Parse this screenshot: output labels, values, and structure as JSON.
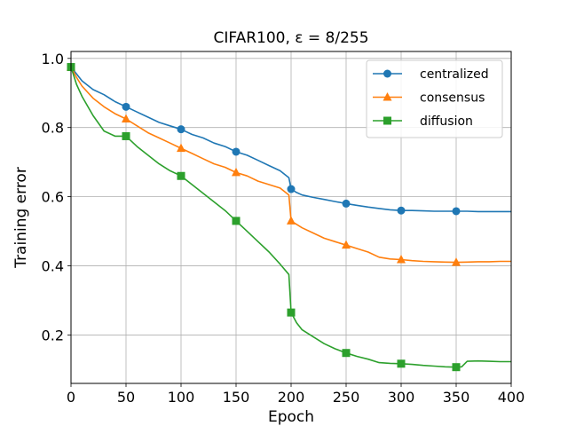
{
  "chart_data": {
    "type": "line",
    "title": "CIFAR100, ε = 8/255",
    "xlabel": "Epoch",
    "ylabel": "Training error",
    "xlim": [
      0,
      400
    ],
    "ylim": [
      0.06,
      1.02
    ],
    "xticks": [
      0,
      50,
      100,
      150,
      200,
      250,
      300,
      350,
      400
    ],
    "xtick_labels": [
      "0",
      "50",
      "100",
      "150",
      "200",
      "250",
      "300",
      "350",
      "400"
    ],
    "yticks": [
      0.2,
      0.4,
      0.6,
      0.8,
      1.0
    ],
    "ytick_labels": [
      "0.2",
      "0.4",
      "0.6",
      "0.8",
      "1.0"
    ],
    "grid": true,
    "legend_position": "top-right",
    "series": [
      {
        "name": "centralized",
        "color": "#1f77b4",
        "marker": "circle",
        "x": [
          0,
          5,
          10,
          20,
          30,
          40,
          50,
          60,
          70,
          80,
          90,
          100,
          110,
          120,
          130,
          140,
          150,
          160,
          170,
          180,
          190,
          198,
          200,
          205,
          210,
          220,
          230,
          240,
          250,
          260,
          270,
          280,
          290,
          300,
          310,
          320,
          330,
          340,
          350,
          360,
          370,
          380,
          390,
          400
        ],
        "y": [
          0.975,
          0.955,
          0.935,
          0.91,
          0.895,
          0.875,
          0.86,
          0.845,
          0.83,
          0.815,
          0.805,
          0.795,
          0.78,
          0.77,
          0.755,
          0.745,
          0.73,
          0.72,
          0.705,
          0.69,
          0.675,
          0.655,
          0.622,
          0.612,
          0.605,
          0.598,
          0.592,
          0.586,
          0.58,
          0.575,
          0.57,
          0.566,
          0.562,
          0.56,
          0.56,
          0.559,
          0.558,
          0.558,
          0.558,
          0.558,
          0.557,
          0.557,
          0.557,
          0.557
        ],
        "marker_x": [
          0,
          50,
          100,
          150,
          200,
          250,
          300,
          350
        ]
      },
      {
        "name": "consensus",
        "color": "#ff7f0e",
        "marker": "triangle",
        "x": [
          0,
          5,
          10,
          20,
          30,
          40,
          50,
          60,
          70,
          80,
          90,
          100,
          110,
          120,
          130,
          140,
          150,
          160,
          170,
          180,
          190,
          198,
          200,
          210,
          220,
          230,
          240,
          250,
          260,
          270,
          280,
          290,
          300,
          310,
          320,
          330,
          340,
          350,
          360,
          370,
          380,
          390,
          400
        ],
        "y": [
          0.975,
          0.945,
          0.92,
          0.885,
          0.86,
          0.84,
          0.825,
          0.805,
          0.785,
          0.77,
          0.755,
          0.74,
          0.725,
          0.71,
          0.695,
          0.685,
          0.67,
          0.66,
          0.645,
          0.635,
          0.625,
          0.605,
          0.53,
          0.51,
          0.495,
          0.48,
          0.47,
          0.46,
          0.45,
          0.44,
          0.425,
          0.42,
          0.418,
          0.415,
          0.413,
          0.412,
          0.411,
          0.41,
          0.411,
          0.412,
          0.412,
          0.413,
          0.413
        ],
        "marker_x": [
          0,
          50,
          100,
          150,
          200,
          250,
          300,
          350
        ]
      },
      {
        "name": "diffusion",
        "color": "#2ca02c",
        "marker": "square",
        "x": [
          0,
          5,
          10,
          20,
          30,
          40,
          50,
          60,
          70,
          80,
          90,
          100,
          110,
          120,
          130,
          140,
          150,
          160,
          170,
          180,
          190,
          198,
          200,
          205,
          210,
          220,
          230,
          240,
          250,
          260,
          270,
          280,
          290,
          300,
          310,
          320,
          330,
          340,
          350,
          355,
          360,
          370,
          380,
          390,
          400
        ],
        "y": [
          0.975,
          0.925,
          0.89,
          0.835,
          0.79,
          0.775,
          0.775,
          0.745,
          0.72,
          0.695,
          0.675,
          0.66,
          0.635,
          0.61,
          0.585,
          0.56,
          0.53,
          0.5,
          0.47,
          0.44,
          0.405,
          0.375,
          0.265,
          0.235,
          0.215,
          0.195,
          0.175,
          0.16,
          0.148,
          0.138,
          0.13,
          0.12,
          0.118,
          0.117,
          0.115,
          0.112,
          0.11,
          0.108,
          0.107,
          0.108,
          0.124,
          0.125,
          0.124,
          0.123,
          0.123
        ],
        "marker_x": [
          0,
          50,
          100,
          150,
          200,
          250,
          300,
          350
        ]
      }
    ]
  }
}
